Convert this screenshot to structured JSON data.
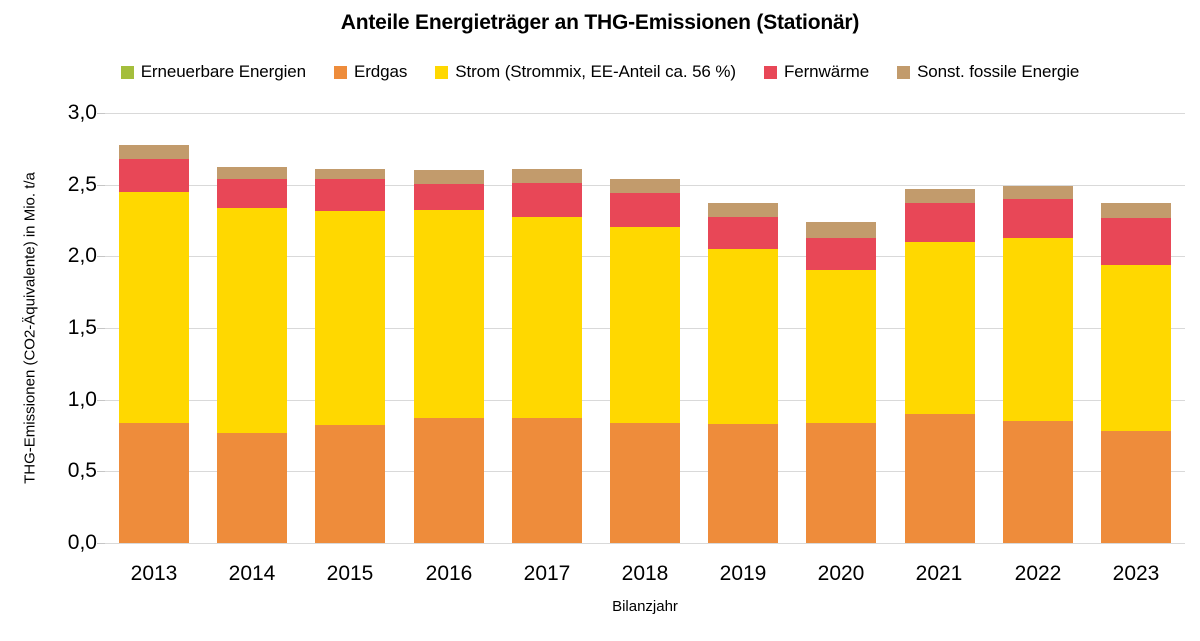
{
  "chart_data": {
    "type": "bar",
    "stacked": true,
    "title": "Anteile Energieträger an THG-Emissionen (Stationär)",
    "xlabel": "Bilanzjahr",
    "ylabel": "THG-Emissionen (CO2-Äquivalente) in Mio. t/a",
    "categories": [
      "2013",
      "2014",
      "2015",
      "2016",
      "2017",
      "2018",
      "2019",
      "2020",
      "2021",
      "2022",
      "2023"
    ],
    "series": [
      {
        "name": "Erneuerbare Energien",
        "color": "#a4be3c",
        "values": [
          0,
          0,
          0,
          0,
          0,
          0,
          0,
          0,
          0,
          0,
          0
        ]
      },
      {
        "name": "Erdgas",
        "color": "#ee8c3b",
        "values": [
          0.84,
          0.77,
          0.82,
          0.87,
          0.87,
          0.84,
          0.83,
          0.84,
          0.9,
          0.85,
          0.78
        ]
      },
      {
        "name": "Strom (Strommix, EE-Anteil ca. 56 %)",
        "color": "#ffd800",
        "values": [
          1.61,
          1.57,
          1.49,
          1.45,
          1.4,
          1.37,
          1.22,
          1.07,
          1.2,
          1.28,
          1.16
        ]
      },
      {
        "name": "Fernwärme",
        "color": "#e84757",
        "values": [
          0.23,
          0.2,
          0.22,
          0.18,
          0.24,
          0.24,
          0.22,
          0.22,
          0.27,
          0.27,
          0.33
        ]
      },
      {
        "name": "Sonst. fossile Energie",
        "color": "#c29b6c",
        "values": [
          0.1,
          0.08,
          0.08,
          0.1,
          0.1,
          0.09,
          0.1,
          0.11,
          0.1,
          0.09,
          0.1
        ]
      }
    ],
    "totals": [
      2.78,
      2.62,
      2.61,
      2.6,
      2.61,
      2.54,
      2.37,
      2.24,
      2.47,
      2.49,
      2.37
    ],
    "ylim": [
      0.0,
      3.0
    ],
    "ytick_step": 0.5,
    "ytick_labels": [
      "0,0",
      "0,5",
      "1,0",
      "1,5",
      "2,0",
      "2,5",
      "3,0"
    ],
    "grid": true,
    "legend_position": "top-horizontal",
    "colors": {
      "gridline": "#d9d9d9",
      "tick": "#c6c6c6",
      "text": "#000000",
      "background": "#ffffff"
    }
  }
}
